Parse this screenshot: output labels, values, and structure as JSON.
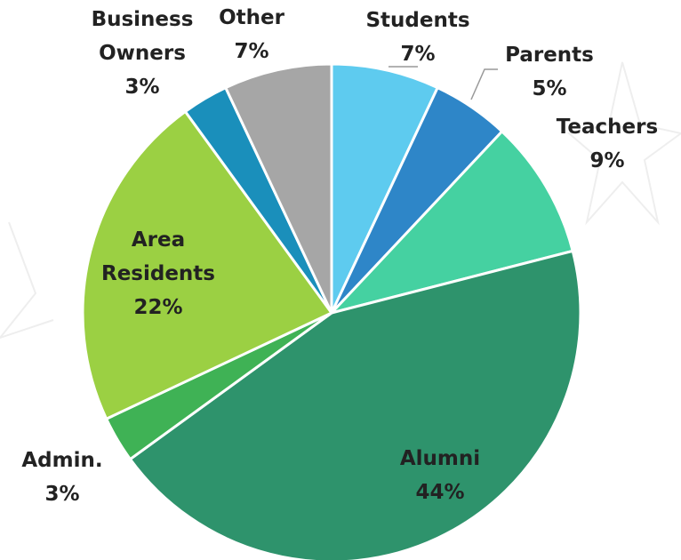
{
  "chart_data": {
    "type": "pie",
    "categories": [
      "Students",
      "Parents",
      "Teachers",
      "Alumni",
      "Admin.",
      "Area Residents",
      "Business Owners",
      "Other"
    ],
    "values": [
      7,
      5,
      9,
      44,
      3,
      22,
      3,
      7
    ],
    "value_labels": [
      "7%",
      "5%",
      "9%",
      "44%",
      "3%",
      "22%",
      "3%",
      "7%"
    ],
    "colors": [
      "#5ecbef",
      "#2e86c8",
      "#45d1a1",
      "#2e936c",
      "#3fb255",
      "#9bd043",
      "#1a8fbb",
      "#a6a6a6"
    ]
  }
}
